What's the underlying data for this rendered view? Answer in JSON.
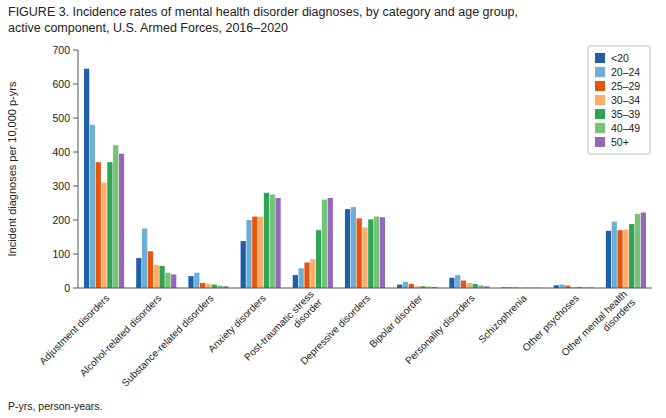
{
  "chart_data": {
    "type": "bar",
    "title": "FIGURE 3. Incidence rates of mental health disorder diagnoses, by category and age group,\nactive component, U.S. Armed Forces, 2016–2020",
    "y_label": "Incident diagnoses per 10,000 p-yrs",
    "annotations": [
      "P-yrs, person-years."
    ],
    "categories": [
      "Adjustment disorders",
      "Alcohol-related disorders",
      "Substance-related disorders",
      "Anxiety disorders",
      "Post-traumatic stress\ndisorder",
      "Depressive disorders",
      "Bipolar disorder",
      "Personality disorders",
      "Schizophrenia",
      "Other psychoses",
      "Other mental health\ndisorders"
    ],
    "series": [
      {
        "name": "<20",
        "color": "#1f5faa",
        "values": [
          645,
          88,
          35,
          138,
          38,
          232,
          10,
          30,
          2,
          8,
          168
        ]
      },
      {
        "name": "20–24",
        "color": "#6baed6",
        "values": [
          480,
          175,
          45,
          200,
          58,
          238,
          18,
          38,
          3,
          10,
          195
        ]
      },
      {
        "name": "25–29",
        "color": "#e6550d",
        "values": [
          370,
          108,
          15,
          210,
          75,
          205,
          12,
          22,
          2,
          7,
          170
        ]
      },
      {
        "name": "30–34",
        "color": "#fdae6b",
        "values": [
          310,
          68,
          12,
          210,
          85,
          178,
          5,
          15,
          1,
          3,
          172
        ]
      },
      {
        "name": "35–39",
        "color": "#31a354",
        "values": [
          370,
          65,
          10,
          280,
          170,
          202,
          5,
          12,
          1,
          3,
          188
        ]
      },
      {
        "name": "40–49",
        "color": "#74c476",
        "values": [
          420,
          45,
          7,
          275,
          260,
          210,
          4,
          8,
          1,
          2,
          218
        ]
      },
      {
        "name": "50+",
        "color": "#9467bd",
        "values": [
          395,
          40,
          5,
          265,
          265,
          208,
          3,
          5,
          1,
          2,
          222
        ]
      }
    ],
    "ylim": [
      0,
      700
    ],
    "yticks": [
      0,
      100,
      200,
      300,
      400,
      500,
      600,
      700
    ],
    "grid": false,
    "legend": "upper right"
  }
}
